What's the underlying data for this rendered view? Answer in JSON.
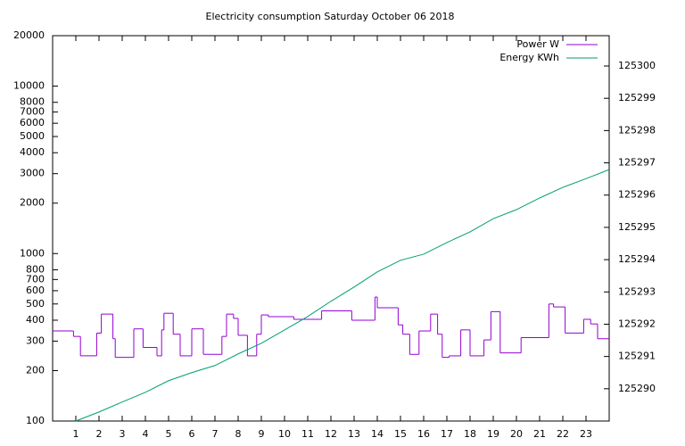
{
  "chart_data": {
    "type": "line",
    "title": "Electricity consumption Saturday October 06 2018",
    "drawstyle": "steps-post",
    "log_y": true,
    "grid": false,
    "legend": "top-right",
    "xlim": [
      0,
      24
    ],
    "xticks": [
      1,
      2,
      3,
      4,
      5,
      6,
      7,
      8,
      9,
      10,
      11,
      12,
      13,
      14,
      15,
      16,
      17,
      18,
      19,
      20,
      21,
      22,
      23
    ],
    "ylim": [
      100,
      20000
    ],
    "yticks": [
      100,
      200,
      300,
      400,
      500,
      600,
      700,
      800,
      1000,
      2000,
      3000,
      4000,
      5000,
      6000,
      7000,
      8000,
      10000,
      20000
    ],
    "y2lim": [
      125289,
      125300.94
    ],
    "y2ticks": [
      125290,
      125291,
      125292,
      125293,
      125294,
      125295,
      125296,
      125297,
      125298,
      125299,
      125300
    ],
    "series": [
      {
        "name": "Power W",
        "color": "#9400d3",
        "step": true,
        "x": [
          0,
          0.9,
          1.2,
          1.9,
          2.1,
          2.6,
          2.7,
          3.5,
          3.9,
          4.5,
          4.7,
          4.8,
          5.2,
          5.5,
          6.0,
          6.5,
          7.3,
          7.5,
          7.8,
          8.0,
          8.4,
          8.8,
          9.0,
          9.3,
          10.4,
          11.6,
          12.9,
          13.9,
          14.0,
          14.9,
          15.1,
          15.4,
          15.8,
          16.3,
          16.6,
          16.8,
          17.1,
          17.6,
          18.0,
          18.6,
          18.9,
          19.3,
          20.2,
          21.4,
          21.6,
          22.1,
          22.9,
          23.2,
          23.5
        ],
        "values": [
          345,
          320,
          245,
          335,
          435,
          310,
          240,
          355,
          275,
          245,
          350,
          440,
          330,
          245,
          355,
          250,
          320,
          435,
          410,
          325,
          245,
          330,
          430,
          420,
          405,
          455,
          400,
          550,
          475,
          375,
          330,
          250,
          345,
          435,
          330,
          240,
          245,
          350,
          245,
          305,
          450,
          255,
          315,
          500,
          480,
          335,
          405,
          380,
          310
        ]
      },
      {
        "name": "Energy KWh",
        "color": "#009e73",
        "axis": "y2",
        "x": [
          1,
          2,
          3,
          4,
          5,
          6,
          7,
          8,
          9,
          10,
          11,
          12,
          13,
          14,
          15,
          16,
          17,
          18,
          19,
          20,
          21,
          22,
          23,
          24
        ],
        "values": [
          125289.0,
          125289.28,
          125289.59,
          125289.89,
          125290.25,
          125290.5,
          125290.72,
          125291.08,
          125291.41,
          125291.82,
          125292.24,
          125292.71,
          125293.15,
          125293.62,
          125293.98,
          125294.17,
          125294.53,
          125294.86,
          125295.27,
          125295.55,
          125295.91,
          125296.24,
          125296.51,
          125296.79
        ]
      }
    ]
  }
}
